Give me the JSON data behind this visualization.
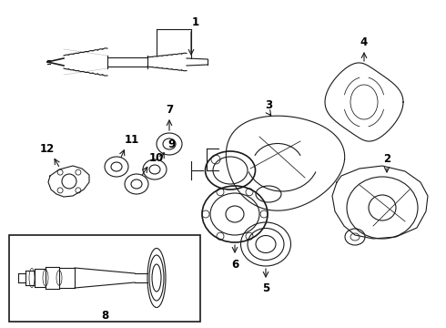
{
  "bg_color": "#ffffff",
  "line_color": "#1a1a1a",
  "fig_width": 4.9,
  "fig_height": 3.6,
  "dpi": 100,
  "lw": 0.8,
  "lw_thick": 1.2
}
